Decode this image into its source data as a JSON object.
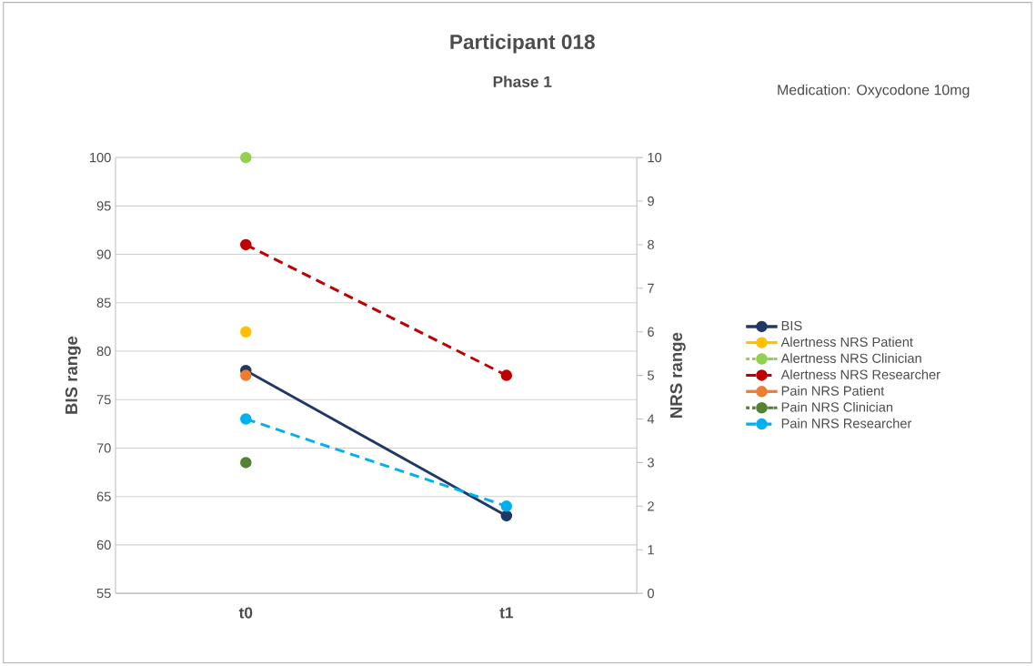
{
  "chart_data": {
    "type": "line",
    "title": "Participant 018",
    "subtitle": "Phase 1",
    "ylabel": "BIS range",
    "y2label": "NRS range",
    "annotations": [
      "Medication: Oxycodone 10mg"
    ],
    "categories": [
      "t0",
      "t1"
    ],
    "ylim": [
      55,
      100
    ],
    "yticks": [
      55,
      60,
      65,
      70,
      75,
      80,
      85,
      90,
      95,
      100
    ],
    "y2lim": [
      0,
      10
    ],
    "y2ticks": [
      0,
      1,
      2,
      3,
      4,
      5,
      6,
      7,
      8,
      9,
      10
    ],
    "grid": "y",
    "legend": "right",
    "marker": "circle",
    "series": [
      {
        "name": "BIS",
        "color": "#1f3864",
        "values": [
          78,
          63
        ],
        "line_style": "solid"
      },
      {
        "name": "Alertness NRS Patient",
        "color": "#ffc000",
        "values": [
          6,
          null
        ],
        "axis": "y2",
        "line_style": "solid"
      },
      {
        "name": "Alertness NRS Clinician",
        "color": "#92d050",
        "values": [
          10,
          null
        ],
        "axis": "y2",
        "line_style": "dotted"
      },
      {
        "name": "Alertness NRS Researcher",
        "color": "#c00000",
        "values": [
          8,
          5
        ],
        "axis": "y2",
        "line_style": "dashed"
      },
      {
        "name": "Pain NRS Patient",
        "color": "#ed7d31",
        "values": [
          5,
          null
        ],
        "axis": "y2",
        "line_style": "solid"
      },
      {
        "name": "Pain NRS Clinician",
        "color": "#548235",
        "values": [
          3,
          null
        ],
        "axis": "y2",
        "line_style": "dotted"
      },
      {
        "name": "Pain NRS Researcher",
        "color": "#00b0f0",
        "values": [
          4,
          2
        ],
        "axis": "y2",
        "line_style": "dashed"
      }
    ]
  }
}
